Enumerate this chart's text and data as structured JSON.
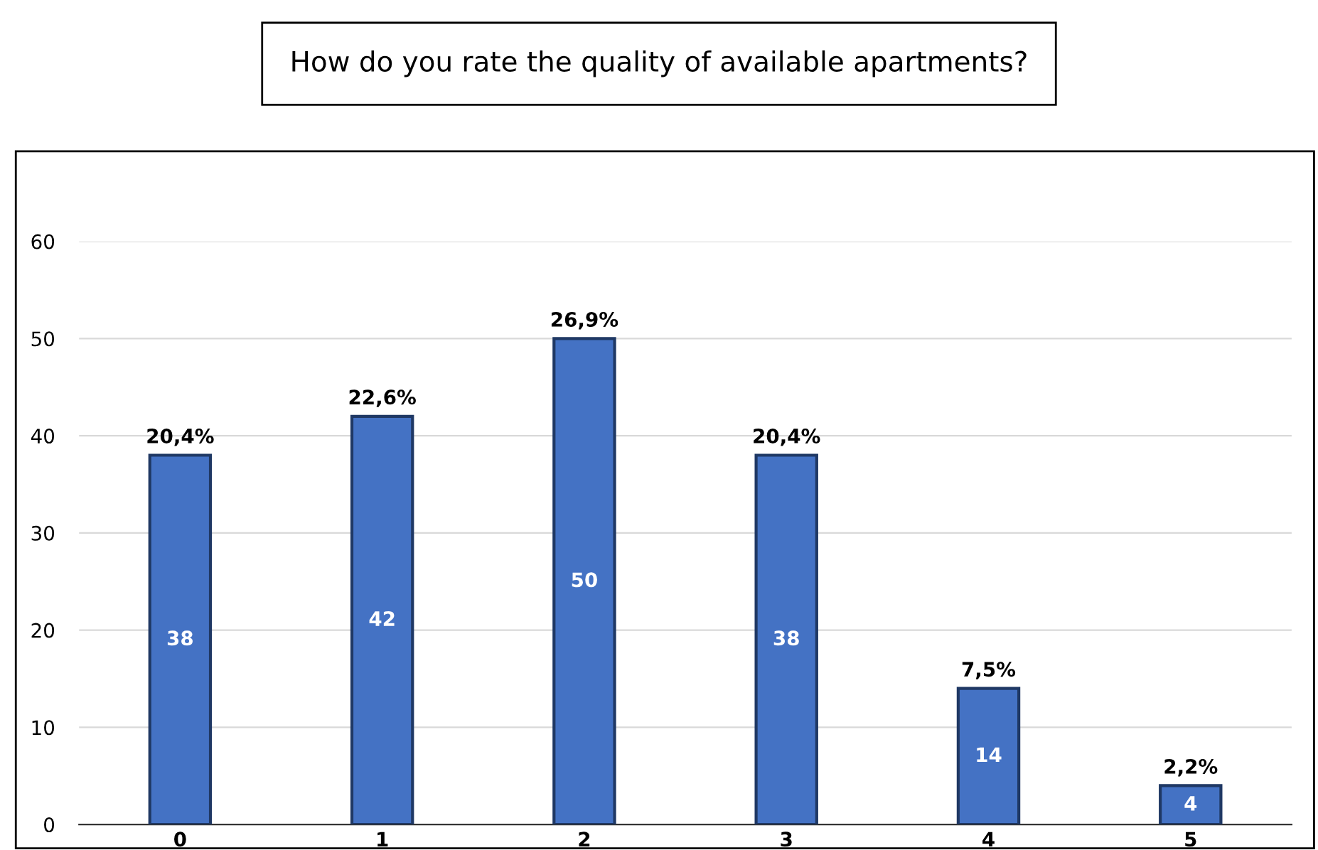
{
  "chart_data": {
    "type": "bar",
    "title": "How do you rate the quality of available apartments?",
    "categories": [
      "0",
      "1",
      "2",
      "3",
      "4",
      "5"
    ],
    "values": [
      38,
      42,
      50,
      38,
      14,
      4
    ],
    "color": "#4472c4",
    "value_labels": [
      "38",
      "42",
      "50",
      "38",
      "14",
      "4"
    ],
    "annotations": [
      {
        "text": "20,4%",
        "x": "0",
        "y": 38
      },
      {
        "text": "22,6%",
        "x": "1",
        "y": 42
      },
      {
        "text": "26,9%",
        "x": "2",
        "y": 50
      },
      {
        "text": "20,4%",
        "x": "3",
        "y": 38
      },
      {
        "text": "7,5%",
        "x": "4",
        "y": 14
      },
      {
        "text": "2,2%",
        "x": "5",
        "y": 4
      }
    ],
    "ylim": [
      0,
      60
    ],
    "yticks": [
      0,
      10,
      20,
      30,
      40,
      50,
      60
    ],
    "grid": "y",
    "legend": false
  }
}
